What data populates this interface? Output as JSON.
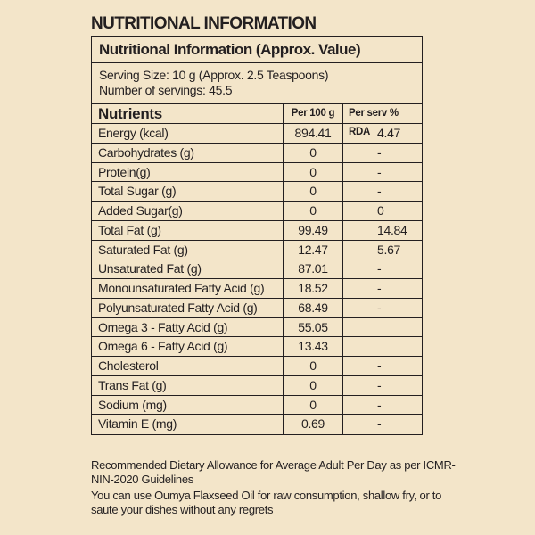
{
  "heading": "NUTRITIONAL INFORMATION",
  "table": {
    "title": "Nutritional Information (Approx. Value)",
    "serving_size": "Serving Size: 10 g (Approx. 2.5 Teaspoons)",
    "servings": "Number of servings: 45.5",
    "headers": [
      "Nutrients",
      "Per 100 g",
      "Per serv % RDA"
    ],
    "rows": [
      [
        "Energy (kcal)",
        "894.41",
        "4.47"
      ],
      [
        "Carbohydrates (g)",
        "0",
        "-"
      ],
      [
        "Protein(g)",
        "0",
        "-"
      ],
      [
        "Total Sugar (g)",
        "0",
        "-"
      ],
      [
        "Added Sugar(g)",
        "0",
        "0"
      ],
      [
        "Total Fat (g)",
        "99.49",
        "14.84"
      ],
      [
        "Saturated Fat (g)",
        "12.47",
        "5.67"
      ],
      [
        "Unsaturated Fat (g)",
        "87.01",
        "-"
      ],
      [
        "Monounsaturated Fatty Acid (g)",
        "18.52",
        "-"
      ],
      [
        "Polyunsaturated Fatty Acid (g)",
        "68.49",
        "-"
      ],
      [
        "Omega 3 - Fatty Acid (g)",
        "55.05",
        ""
      ],
      [
        "Omega 6 - Fatty Acid (g)",
        "13.43",
        ""
      ],
      [
        "Cholesterol",
        "0",
        "-"
      ],
      [
        "Trans Fat (g)",
        "0",
        "-"
      ],
      [
        "Sodium (mg)",
        "0",
        "-"
      ],
      [
        "Vitamin E (mg)",
        "0.69",
        "-"
      ]
    ]
  },
  "footer": {
    "rda_note": "Recommended Dietary Allowance for Average Adult Per Day as per ICMR-NIN-2020 Guidelines",
    "usage_note": "You can use Oumya Flaxseed Oil for raw consumption, shallow fry, or to saute your dishes without any regrets"
  }
}
